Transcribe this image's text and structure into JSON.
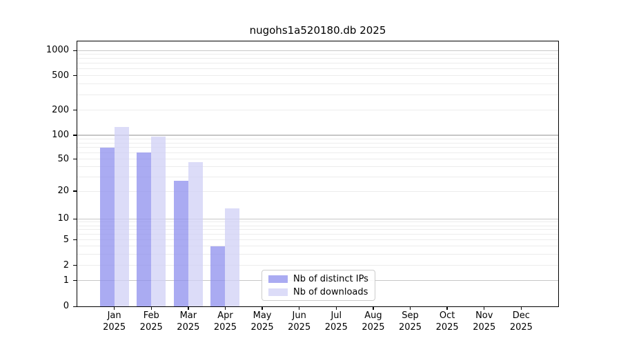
{
  "title": "nugohs1a520180.db 2025",
  "year_label": "2025",
  "months": [
    "Jan",
    "Feb",
    "Mar",
    "Apr",
    "May",
    "Jun",
    "Jul",
    "Aug",
    "Sep",
    "Oct",
    "Nov",
    "Dec"
  ],
  "y_tick_labels": [
    "0",
    "1",
    "2",
    "5",
    "10",
    "20",
    "50",
    "100",
    "200",
    "500",
    "1000"
  ],
  "legend": {
    "items": [
      {
        "label": "Nb of distinct IPs",
        "color": "#aaabf2"
      },
      {
        "label": "Nb of downloads",
        "color": "#dcdcf8"
      }
    ]
  },
  "colors": {
    "bar_distinct_ips": "rgba(142,143,238,0.75)",
    "bar_downloads": "rgba(208,208,246,0.75)",
    "grid_major": "#c6c6c6",
    "grid_minor": "#ececec",
    "spine": "#000000",
    "legend_border": "#cccccc"
  },
  "chart_data": {
    "type": "bar",
    "title": "nugohs1a520180.db 2025",
    "categories": [
      "Jan 2025",
      "Feb 2025",
      "Mar 2025",
      "Apr 2025",
      "May 2025",
      "Jun 2025",
      "Jul 2025",
      "Aug 2025",
      "Sep 2025",
      "Oct 2025",
      "Nov 2025",
      "Dec 2025"
    ],
    "series": [
      {
        "name": "Nb of distinct IPs",
        "values": [
          70,
          60,
          27,
          4,
          0,
          0,
          0,
          0,
          0,
          0,
          0,
          0
        ]
      },
      {
        "name": "Nb of downloads",
        "values": [
          125,
          96,
          46,
          13,
          0,
          0,
          0,
          0,
          0,
          0,
          0,
          0
        ]
      }
    ],
    "xlabel": "",
    "ylabel": "",
    "yscale": "symlog",
    "y_ticks": [
      0,
      1,
      2,
      5,
      10,
      20,
      50,
      100,
      200,
      500,
      1000
    ],
    "ylim": [
      0,
      1300
    ],
    "grid": "on",
    "legend_position": "bottom-center"
  }
}
